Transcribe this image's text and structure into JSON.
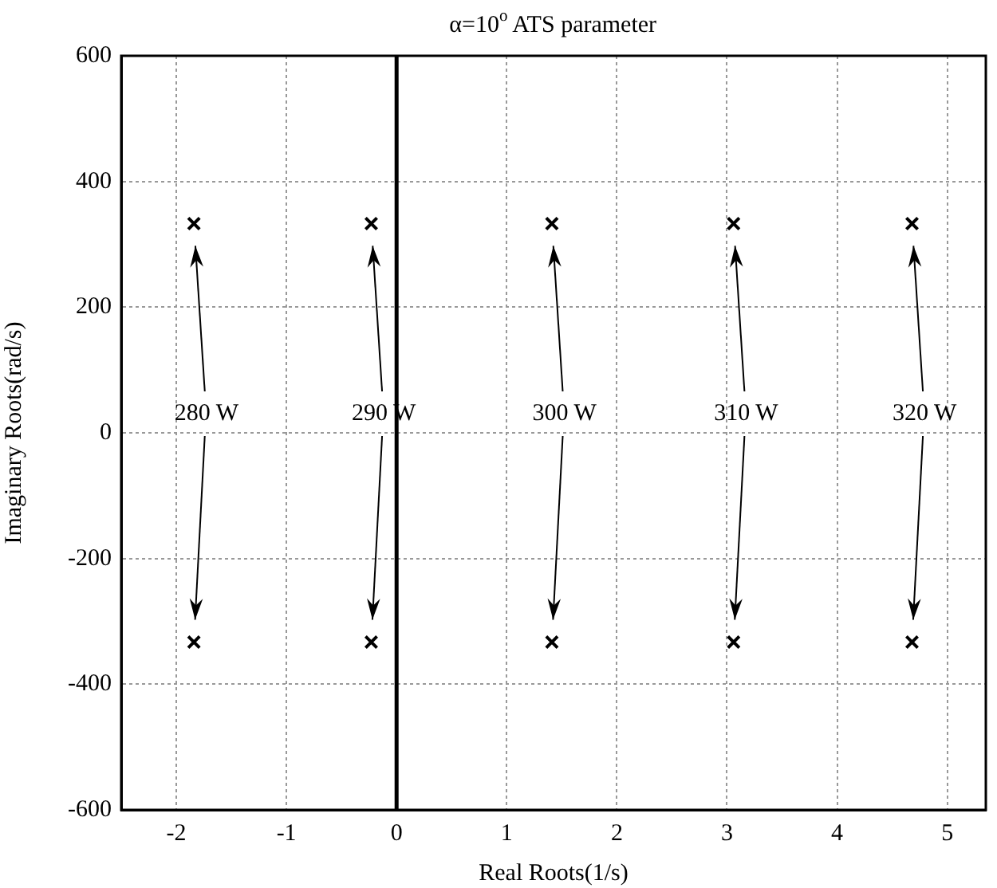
{
  "chart_data": {
    "type": "scatter",
    "title": "α=10$^{o}$ ATS parameter",
    "xlabel": "Real Roots(1/s)",
    "ylabel": "Imaginary Roots(rad/s)",
    "series": [
      {
        "color": "#000000",
        "x": [
          -1.84,
          -0.23,
          1.41,
          3.06,
          4.68,
          -1.84,
          -0.23,
          1.41,
          3.06,
          4.68
        ],
        "values": [
          333,
          333,
          333,
          333,
          333,
          -333,
          -333,
          -333,
          -333,
          -333
        ]
      }
    ],
    "xlim": [
      -2.5,
      5.35
    ],
    "xticks": [
      -2,
      -1,
      0,
      1,
      2,
      3,
      4,
      5
    ],
    "ylim": [
      -600,
      600
    ],
    "yticks": [
      -600,
      -400,
      -200,
      0,
      200,
      400,
      600
    ],
    "grid": true,
    "legend": false,
    "marker": "cross",
    "ref_lines": [
      {
        "axis": "x",
        "value": 0,
        "color": "#000000"
      }
    ],
    "annotations": [
      "280 W",
      "290 W",
      "300 W",
      "310 W",
      "320 W"
    ]
  }
}
